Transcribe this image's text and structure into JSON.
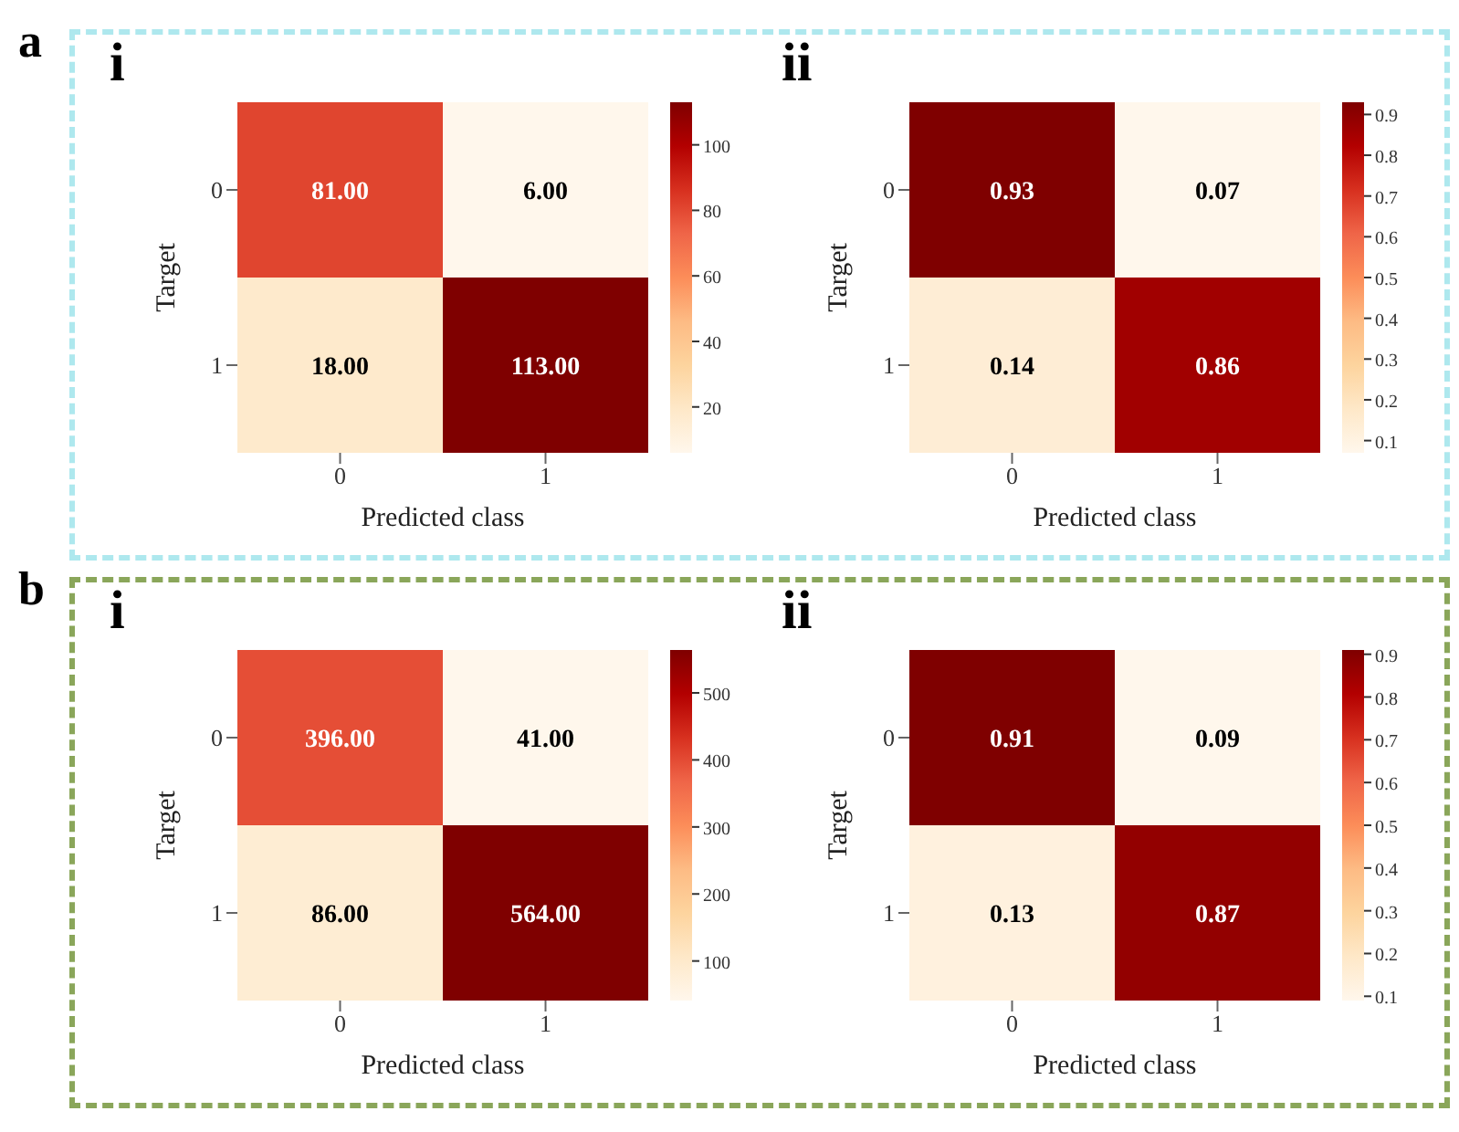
{
  "chart_data": [
    {
      "type": "heatmap",
      "title": "i",
      "annotations": [
        "a"
      ],
      "xlabel": "Predicted class",
      "ylabel": "Target",
      "categories": [
        "0",
        "1"
      ],
      "y_categories": [
        "0",
        "1"
      ],
      "cells": [
        [
          81,
          6
        ],
        [
          18,
          113
        ]
      ],
      "cell_labels": [
        [
          "81.00",
          "6.00"
        ],
        [
          "18.00",
          "113.00"
        ]
      ],
      "clim": [
        6,
        113
      ],
      "cticks": [
        20,
        40,
        60,
        80,
        100
      ]
    },
    {
      "type": "heatmap",
      "title": "ii",
      "xlabel": "Predicted class",
      "ylabel": "Target",
      "categories": [
        "0",
        "1"
      ],
      "y_categories": [
        "0",
        "1"
      ],
      "cells": [
        [
          0.93,
          0.07
        ],
        [
          0.14,
          0.86
        ]
      ],
      "cell_labels": [
        [
          "0.93",
          "0.07"
        ],
        [
          "0.14",
          "0.86"
        ]
      ],
      "clim": [
        0.07,
        0.93
      ],
      "cticks": [
        0.1,
        0.2,
        0.3,
        0.4,
        0.5,
        0.6,
        0.7,
        0.8,
        0.9
      ]
    },
    {
      "type": "heatmap",
      "title": "i",
      "annotations": [
        "b"
      ],
      "xlabel": "Predicted class",
      "ylabel": "Target",
      "categories": [
        "0",
        "1"
      ],
      "y_categories": [
        "0",
        "1"
      ],
      "cells": [
        [
          396,
          41
        ],
        [
          86,
          564
        ]
      ],
      "cell_labels": [
        [
          "396.00",
          "41.00"
        ],
        [
          "86.00",
          "564.00"
        ]
      ],
      "clim": [
        41,
        564
      ],
      "cticks": [
        100,
        200,
        300,
        400,
        500
      ]
    },
    {
      "type": "heatmap",
      "title": "ii",
      "xlabel": "Predicted class",
      "ylabel": "Target",
      "categories": [
        "0",
        "1"
      ],
      "y_categories": [
        "0",
        "1"
      ],
      "cells": [
        [
          0.91,
          0.09
        ],
        [
          0.13,
          0.87
        ]
      ],
      "cell_labels": [
        [
          "0.91",
          "0.09"
        ],
        [
          "0.13",
          "0.87"
        ]
      ],
      "clim": [
        0.09,
        0.91
      ],
      "cticks": [
        0.1,
        0.2,
        0.3,
        0.4,
        0.5,
        0.6,
        0.7,
        0.8,
        0.9
      ]
    }
  ]
}
